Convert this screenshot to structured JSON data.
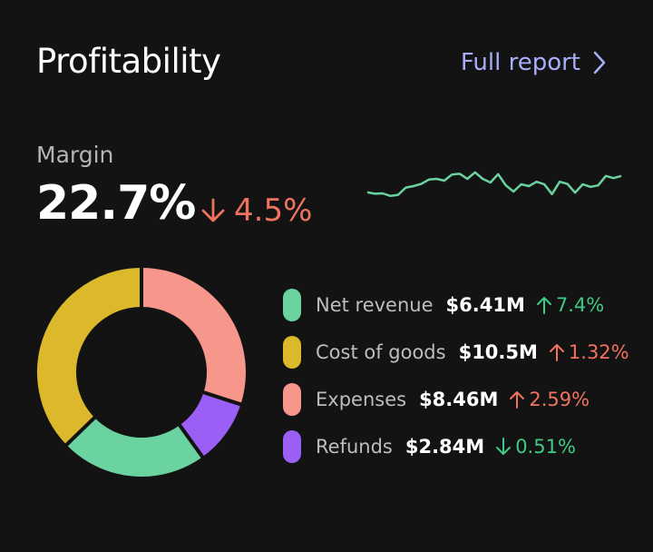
{
  "header": {
    "title": "Profitability",
    "link_label": "Full report"
  },
  "margin": {
    "label": "Margin",
    "value": "22.7%",
    "delta": "4.5%",
    "delta_direction": "down",
    "delta_color": "#f0735f"
  },
  "sparkline": {
    "color": "#6ad3a0",
    "values": [
      38,
      34,
      35,
      28,
      31,
      51,
      55,
      61,
      73,
      75,
      70,
      87,
      89,
      75,
      93,
      75,
      65,
      88,
      57,
      40,
      60,
      55,
      67,
      60,
      33,
      67,
      61,
      37,
      60,
      53,
      57,
      83,
      77,
      83
    ]
  },
  "chart_data": {
    "type": "pie",
    "donut": true,
    "categories": [
      "Net revenue",
      "Cost of goods",
      "Expenses",
      "Refunds"
    ],
    "values": [
      6.41,
      10.5,
      8.46,
      2.84
    ],
    "colors": [
      "#6ad3a0",
      "#dbb92a",
      "#f7968a",
      "#9b5ff5"
    ]
  },
  "legend": [
    {
      "name": "Net revenue",
      "value": "$6.41M",
      "delta": "7.4%",
      "direction": "up",
      "delta_color": "#3ecb85",
      "color": "#6ad3a0"
    },
    {
      "name": "Cost of goods",
      "value": "$10.5M",
      "delta": "1.32%",
      "direction": "up",
      "delta_color": "#f0735f",
      "color": "#dbb92a"
    },
    {
      "name": "Expenses",
      "value": "$8.46M",
      "delta": "2.59%",
      "direction": "up",
      "delta_color": "#f0735f",
      "color": "#f7968a"
    },
    {
      "name": "Refunds",
      "value": "$2.84M",
      "delta": "0.51%",
      "direction": "down",
      "delta_color": "#3ecb85",
      "color": "#9b5ff5"
    }
  ]
}
